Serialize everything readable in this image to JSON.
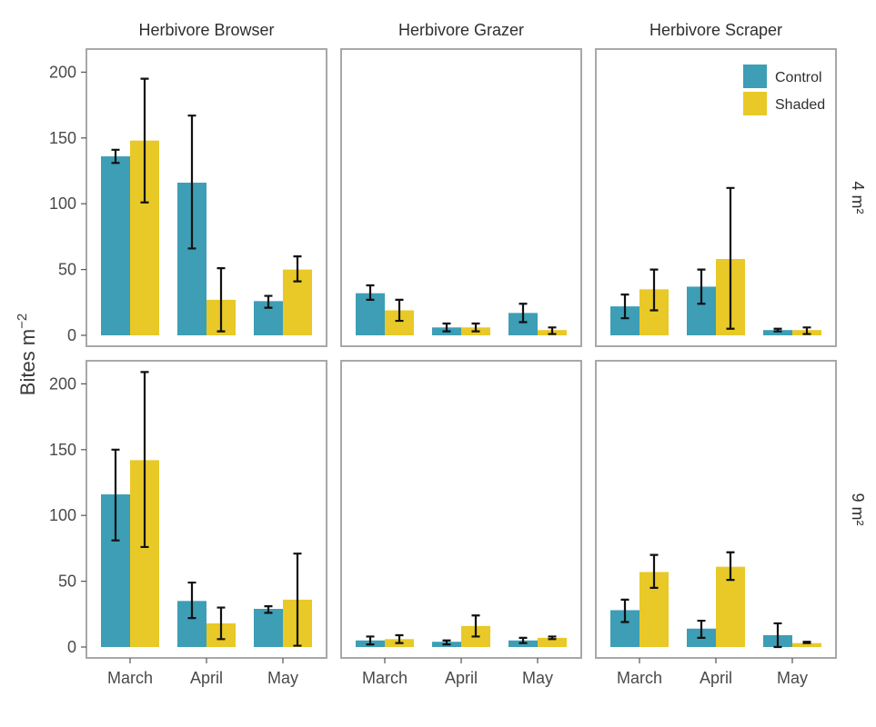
{
  "chart_data": {
    "type": "bar",
    "facet_columns": [
      "Herbivore Browser",
      "Herbivore Grazer",
      "Herbivore Scraper"
    ],
    "facet_rows": [
      "4 m²",
      "9 m²"
    ],
    "categories": [
      "March",
      "April",
      "May"
    ],
    "series_names": [
      "Control",
      "Shaded"
    ],
    "colors": {
      "Control": "#3d9eb5",
      "Shaded": "#e8c927"
    },
    "ylabel": "Bites m",
    "ylabel_sup": "−2",
    "ylim": [
      0,
      210
    ],
    "yticks": [
      0,
      50,
      100,
      150,
      200
    ],
    "legend_position": "top-right",
    "panels": [
      {
        "row": "4 m²",
        "column": "Herbivore Browser",
        "Control": [
          {
            "value": 136,
            "lo": 131,
            "hi": 141
          },
          {
            "value": 116,
            "lo": 66,
            "hi": 167
          },
          {
            "value": 26,
            "lo": 21,
            "hi": 30
          }
        ],
        "Shaded": [
          {
            "value": 148,
            "lo": 101,
            "hi": 195
          },
          {
            "value": 27,
            "lo": 3,
            "hi": 51
          },
          {
            "value": 50,
            "lo": 41,
            "hi": 60
          }
        ]
      },
      {
        "row": "4 m²",
        "column": "Herbivore Grazer",
        "Control": [
          {
            "value": 32,
            "lo": 27,
            "hi": 38
          },
          {
            "value": 6,
            "lo": 3,
            "hi": 9
          },
          {
            "value": 17,
            "lo": 10,
            "hi": 24
          }
        ],
        "Shaded": [
          {
            "value": 19,
            "lo": 11,
            "hi": 27
          },
          {
            "value": 6,
            "lo": 3,
            "hi": 9
          },
          {
            "value": 4,
            "lo": 1,
            "hi": 6
          }
        ]
      },
      {
        "row": "4 m²",
        "column": "Herbivore Scraper",
        "Control": [
          {
            "value": 22,
            "lo": 13,
            "hi": 31
          },
          {
            "value": 37,
            "lo": 24,
            "hi": 50
          },
          {
            "value": 4,
            "lo": 3,
            "hi": 5
          }
        ],
        "Shaded": [
          {
            "value": 35,
            "lo": 19,
            "hi": 50
          },
          {
            "value": 58,
            "lo": 5,
            "hi": 112
          },
          {
            "value": 4,
            "lo": 1,
            "hi": 6
          }
        ]
      },
      {
        "row": "9 m²",
        "column": "Herbivore Browser",
        "Control": [
          {
            "value": 116,
            "lo": 81,
            "hi": 150
          },
          {
            "value": 35,
            "lo": 22,
            "hi": 49
          },
          {
            "value": 29,
            "lo": 26,
            "hi": 31
          }
        ],
        "Shaded": [
          {
            "value": 142,
            "lo": 76,
            "hi": 209
          },
          {
            "value": 18,
            "lo": 6,
            "hi": 30
          },
          {
            "value": 36,
            "lo": 1,
            "hi": 71
          }
        ]
      },
      {
        "row": "9 m²",
        "column": "Herbivore Grazer",
        "Control": [
          {
            "value": 5,
            "lo": 2,
            "hi": 8
          },
          {
            "value": 4,
            "lo": 2,
            "hi": 5
          },
          {
            "value": 5,
            "lo": 3,
            "hi": 7
          }
        ],
        "Shaded": [
          {
            "value": 6,
            "lo": 3,
            "hi": 9
          },
          {
            "value": 16,
            "lo": 8,
            "hi": 24
          },
          {
            "value": 7,
            "lo": 6,
            "hi": 8
          }
        ]
      },
      {
        "row": "9 m²",
        "column": "Herbivore Scraper",
        "Control": [
          {
            "value": 28,
            "lo": 19,
            "hi": 36
          },
          {
            "value": 14,
            "lo": 7,
            "hi": 20
          },
          {
            "value": 9,
            "lo": 0,
            "hi": 18
          }
        ],
        "Shaded": [
          {
            "value": 57,
            "lo": 45,
            "hi": 70
          },
          {
            "value": 61,
            "lo": 51,
            "hi": 72
          },
          {
            "value": 3,
            "lo": 3,
            "hi": 4
          }
        ]
      }
    ]
  }
}
